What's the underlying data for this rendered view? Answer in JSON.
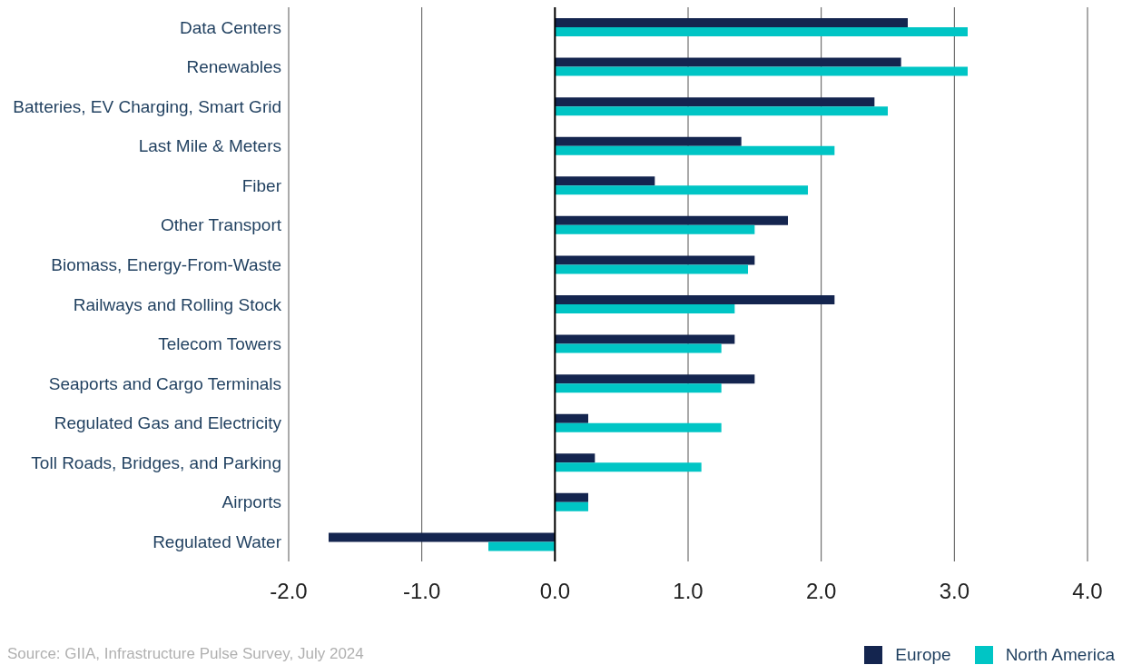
{
  "chart_data": {
    "type": "bar",
    "orientation": "horizontal",
    "categories": [
      "Data Centers",
      "Renewables",
      "Batteries, EV Charging, Smart Grid",
      "Last Mile & Meters",
      "Fiber",
      "Other Transport",
      "Biomass, Energy-From-Waste",
      "Railways and Rolling Stock",
      "Telecom Towers",
      "Seaports and Cargo Terminals",
      "Regulated Gas and Electricity",
      "Toll Roads, Bridges, and Parking",
      "Airports",
      "Regulated Water"
    ],
    "series": [
      {
        "name": "Europe",
        "color": "#14254f",
        "values": [
          2.65,
          2.6,
          2.4,
          1.4,
          0.75,
          1.75,
          1.5,
          2.1,
          1.35,
          1.5,
          0.25,
          0.3,
          0.25,
          -1.7
        ]
      },
      {
        "name": "North America",
        "color": "#00c5c5",
        "values": [
          3.1,
          3.1,
          2.5,
          2.1,
          1.9,
          1.5,
          1.45,
          1.35,
          1.25,
          1.25,
          1.25,
          1.1,
          0.25,
          -0.5
        ]
      }
    ],
    "xlim": [
      -2,
      4
    ],
    "xticks": [
      {
        "value": -2,
        "label": "-2.0"
      },
      {
        "value": -1,
        "label": "-1.0"
      },
      {
        "value": 0,
        "label": "0.0"
      },
      {
        "value": 1,
        "label": "1.0"
      },
      {
        "value": 2,
        "label": "2.0"
      },
      {
        "value": 3,
        "label": "3.0"
      },
      {
        "value": 4,
        "label": "4.0"
      }
    ],
    "grid": "x",
    "legend": "bottom right",
    "ref_lines": [
      {
        "axis": "x",
        "value": 0,
        "color": "#000000"
      }
    ],
    "annotations": [
      "Source: GIIA, Infrastructure Pulse Survey, July 2024"
    ]
  }
}
